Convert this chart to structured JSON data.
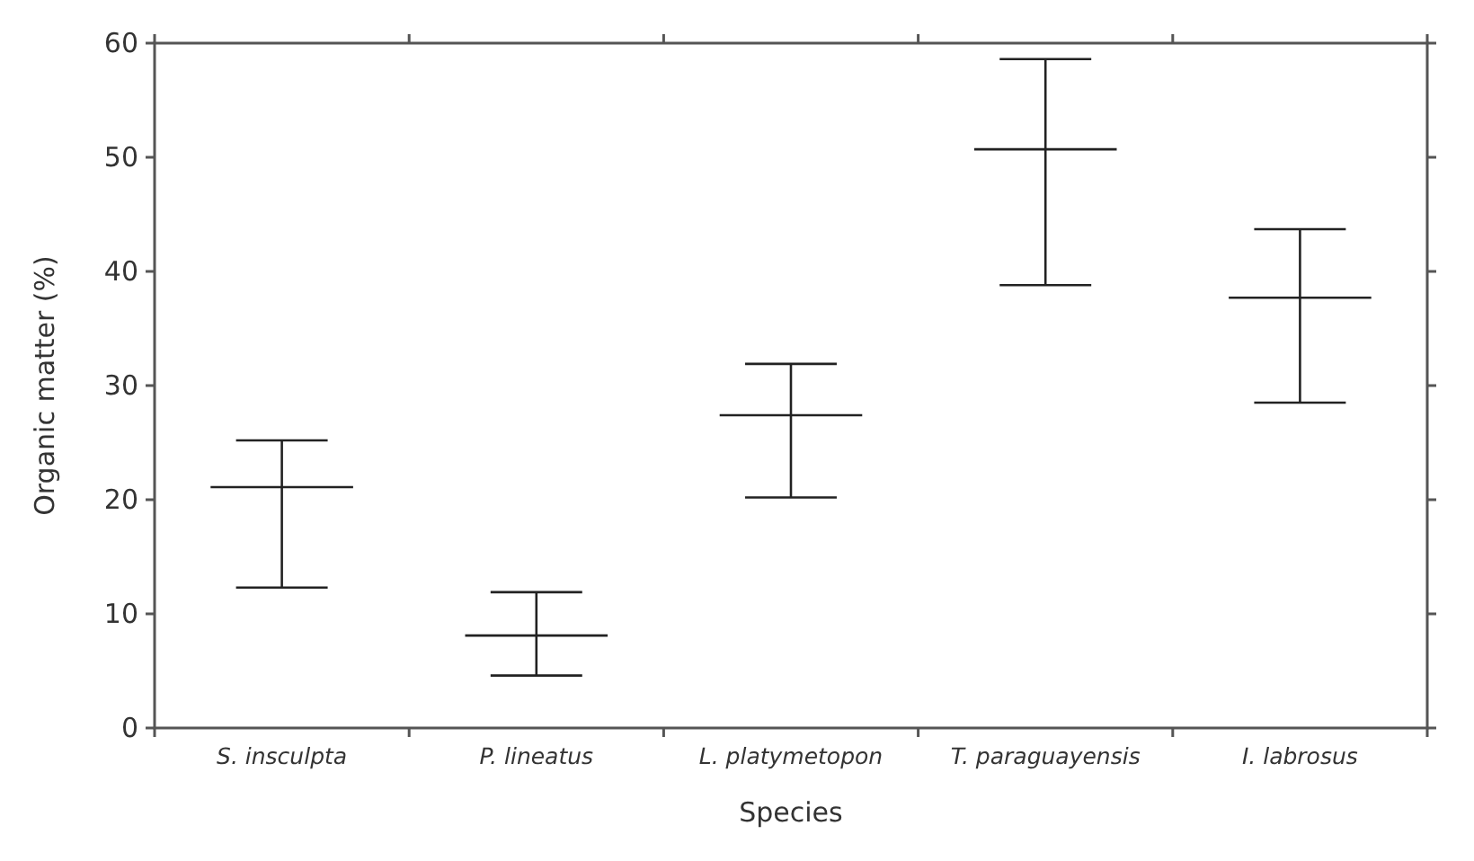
{
  "chart_data": {
    "type": "box",
    "xlabel": "Species",
    "ylabel": "Organic matter (%)",
    "categories": [
      "S. insculpta",
      "P. lineatus",
      "L. platymetopon",
      "T. paraguayensis",
      "I. labrosus"
    ],
    "color": "#222222",
    "boxes": [
      {
        "low": 12.3,
        "q1": 21.1,
        "median": 21.1,
        "q3": 21.1,
        "high": 25.2
      },
      {
        "low": 4.6,
        "q1": 8.1,
        "median": 8.1,
        "q3": 8.1,
        "high": 11.9
      },
      {
        "low": 20.2,
        "q1": 27.4,
        "median": 27.4,
        "q3": 27.4,
        "high": 31.9
      },
      {
        "low": 38.8,
        "q1": 50.7,
        "median": 50.7,
        "q3": 50.7,
        "high": 58.6
      },
      {
        "low": 28.5,
        "q1": 37.7,
        "median": 37.7,
        "q3": 37.7,
        "high": 43.7
      }
    ],
    "ylim": [
      0,
      60
    ],
    "yticks": [
      0,
      10,
      20,
      30,
      40,
      50,
      60
    ],
    "grid": false
  }
}
